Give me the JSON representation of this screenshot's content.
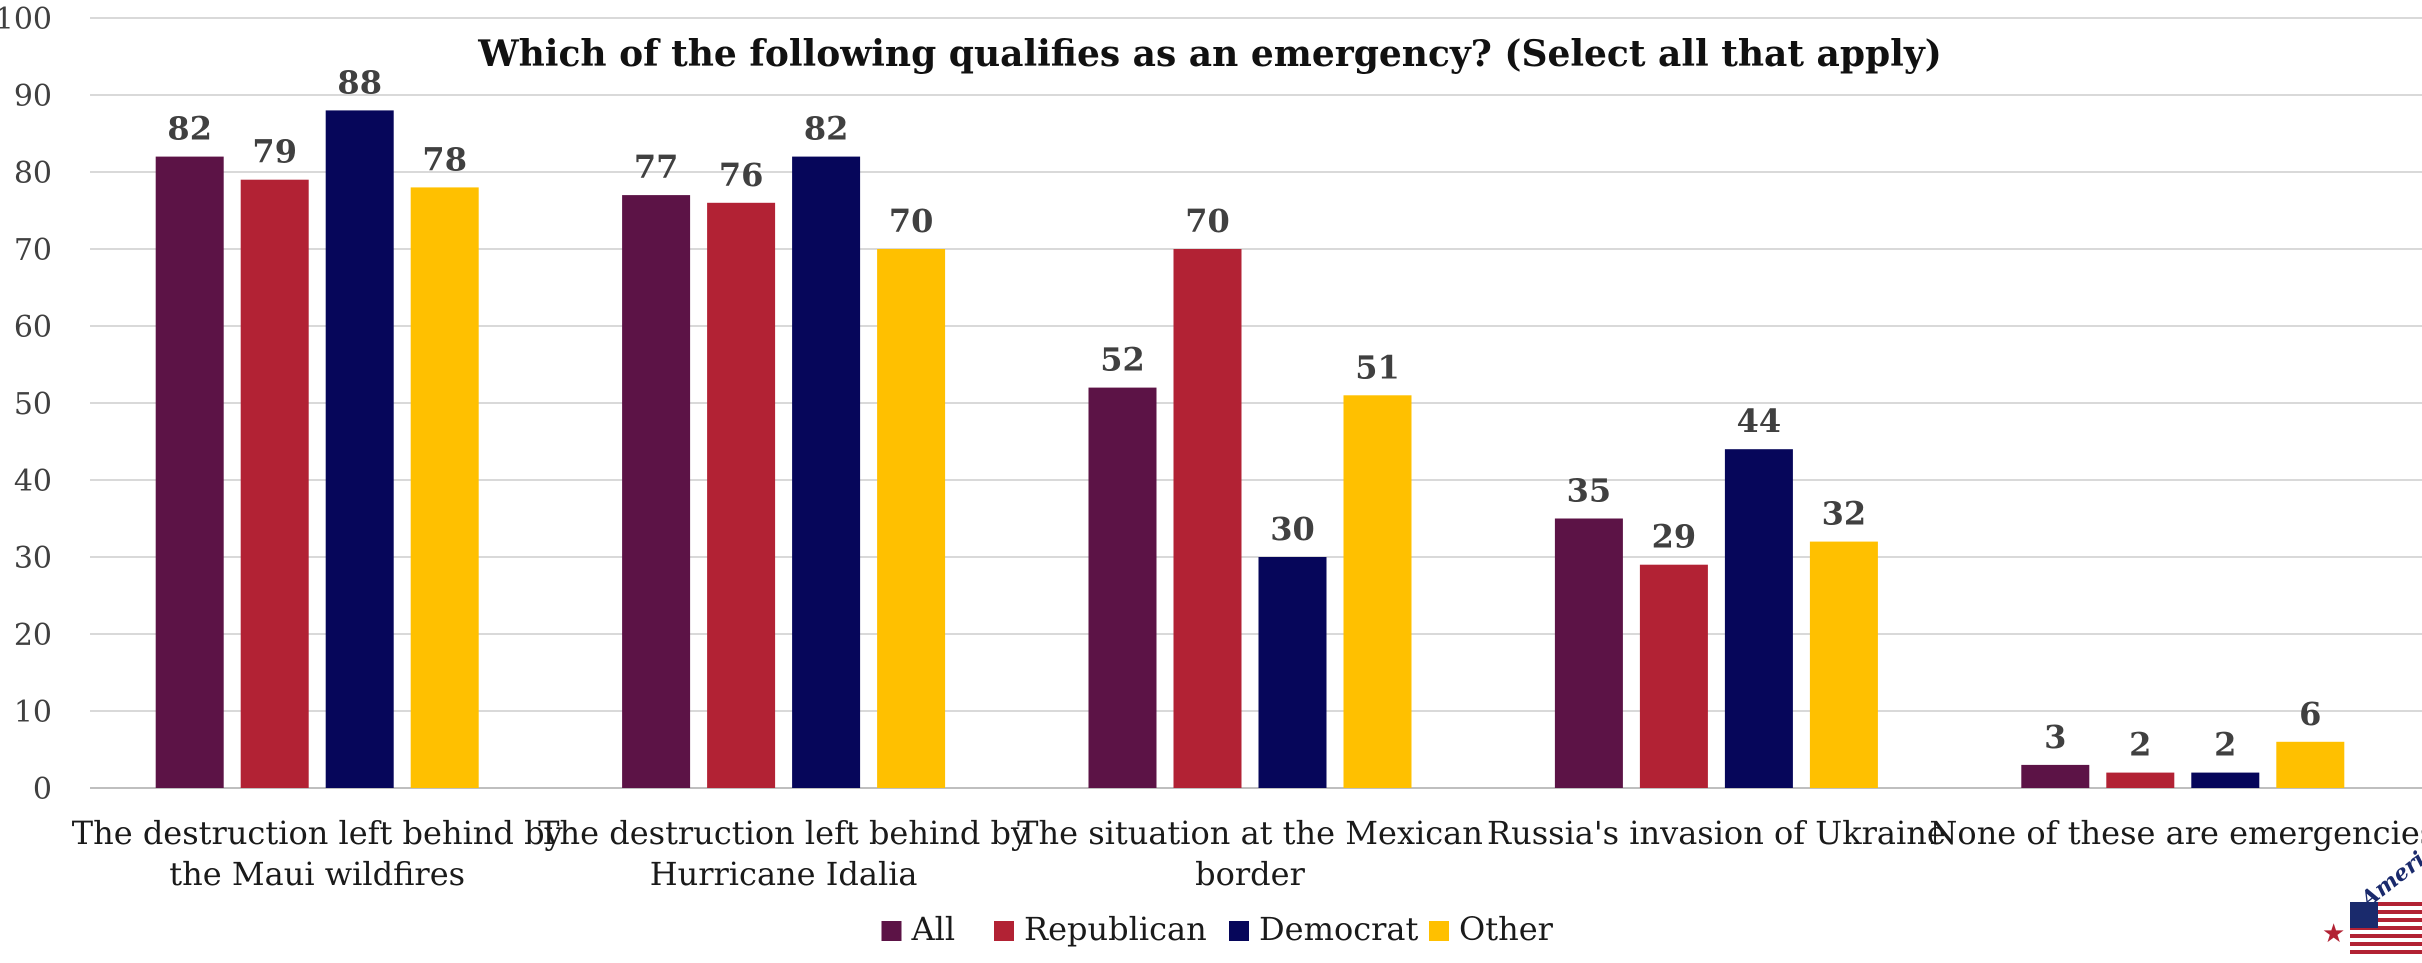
{
  "chart_data": {
    "type": "bar",
    "title": "Which of the following qualifies as an emergency? (Select all that apply)",
    "xlabel": "",
    "ylabel": "",
    "ylim": [
      0,
      100
    ],
    "yticks": [
      0,
      10,
      20,
      30,
      40,
      50,
      60,
      70,
      80,
      90,
      100
    ],
    "grid": true,
    "legend_position": "bottom",
    "categories": [
      [
        "The destruction left behind by",
        "the Maui wildfires"
      ],
      [
        "The destruction left behind by",
        "Hurricane Idalia"
      ],
      [
        "The situation at the Mexican",
        "border"
      ],
      [
        "Russia's invasion of Ukraine"
      ],
      [
        "None of these are emergencies"
      ]
    ],
    "series": [
      {
        "name": "All",
        "color": "#5c1346",
        "values": [
          82,
          77,
          52,
          35,
          3
        ]
      },
      {
        "name": "Republican",
        "color": "#b22234",
        "values": [
          79,
          76,
          70,
          29,
          2
        ]
      },
      {
        "name": "Democrat",
        "color": "#06065a",
        "values": [
          88,
          82,
          30,
          44,
          2
        ]
      },
      {
        "name": "Other",
        "color": "#ffc000",
        "values": [
          78,
          70,
          51,
          32,
          6
        ]
      }
    ]
  },
  "logo": {
    "text": "America",
    "colors": {
      "text": "#1a2a6c",
      "star": "#b22234",
      "stripe": "#b22234",
      "canton": "#1a2a6c"
    }
  }
}
